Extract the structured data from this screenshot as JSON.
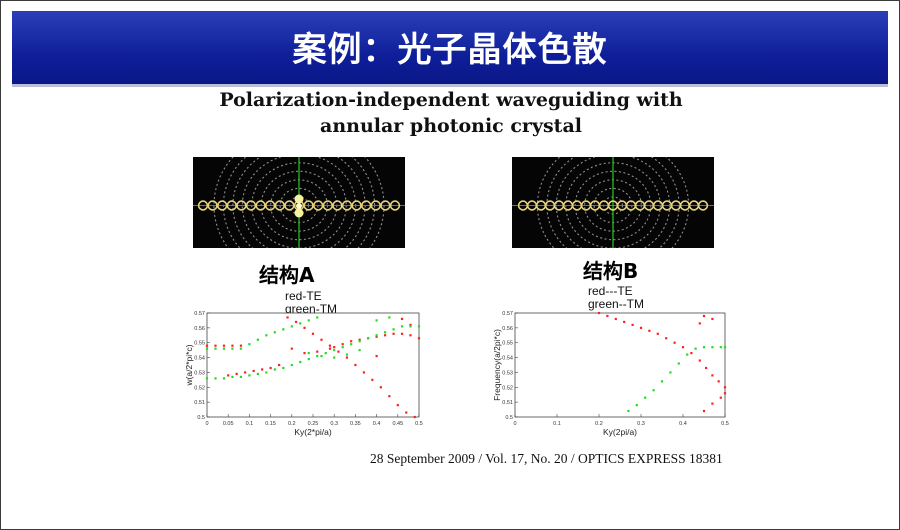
{
  "slide": {
    "title": "案例：光子晶体色散",
    "paper_title_line1": "Polarization-independent waveguiding with",
    "paper_title_line2": "annular photonic crystal",
    "citation": "28 September 2009 / Vol. 17,  No. 20 / OPTICS EXPRESS  18381"
  },
  "structures": [
    {
      "label": "结构A",
      "legend_line1": "red-TE",
      "legend_line2": "green-TM"
    },
    {
      "label": "结构B",
      "legend_line1": "red---TE",
      "legend_line2": "green--TM"
    }
  ],
  "colors": {
    "te": "#ff2020",
    "tm": "#22dd22",
    "title_bar": "#1428a0",
    "crystal_ring": "#bdbdbd",
    "rod": "#e8d27a"
  },
  "chart_data": [
    {
      "type": "scatter",
      "title": "",
      "xlabel": "Ky(2*pi/a)",
      "ylabel": "w(a/2*pi*c)",
      "xlim": [
        0,
        0.5
      ],
      "ylim": [
        0.5,
        0.57
      ],
      "xticks": [
        "0",
        "0.05",
        "0.1",
        "0.15",
        "0.2",
        "0.25",
        "0.3",
        "0.35",
        "0.4",
        "0.45",
        "0.5"
      ],
      "yticks": [
        "0.5",
        "0.51",
        "0.52",
        "0.53",
        "0.54",
        "0.55",
        "0.56",
        "0.57"
      ],
      "series": [
        {
          "name": "red-TE",
          "color": "#ff2020",
          "points": [
            [
              0.0,
              0.548
            ],
            [
              0.02,
              0.548
            ],
            [
              0.04,
              0.548
            ],
            [
              0.06,
              0.548
            ],
            [
              0.08,
              0.548
            ],
            [
              0.05,
              0.528
            ],
            [
              0.07,
              0.529
            ],
            [
              0.09,
              0.53
            ],
            [
              0.11,
              0.531
            ],
            [
              0.13,
              0.532
            ],
            [
              0.15,
              0.533
            ],
            [
              0.17,
              0.535
            ],
            [
              0.19,
              0.567
            ],
            [
              0.21,
              0.564
            ],
            [
              0.23,
              0.56
            ],
            [
              0.25,
              0.556
            ],
            [
              0.27,
              0.552
            ],
            [
              0.29,
              0.548
            ],
            [
              0.31,
              0.544
            ],
            [
              0.33,
              0.54
            ],
            [
              0.35,
              0.535
            ],
            [
              0.37,
              0.53
            ],
            [
              0.39,
              0.525
            ],
            [
              0.41,
              0.52
            ],
            [
              0.43,
              0.514
            ],
            [
              0.45,
              0.508
            ],
            [
              0.47,
              0.503
            ],
            [
              0.49,
              0.5
            ],
            [
              0.2,
              0.546
            ],
            [
              0.23,
              0.543
            ],
            [
              0.26,
              0.544
            ],
            [
              0.29,
              0.546
            ],
            [
              0.3,
              0.547
            ],
            [
              0.32,
              0.549
            ],
            [
              0.34,
              0.551
            ],
            [
              0.36,
              0.552
            ],
            [
              0.38,
              0.553
            ],
            [
              0.4,
              0.554
            ],
            [
              0.42,
              0.555
            ],
            [
              0.44,
              0.556
            ],
            [
              0.46,
              0.556
            ],
            [
              0.48,
              0.555
            ],
            [
              0.5,
              0.553
            ],
            [
              0.4,
              0.541
            ],
            [
              0.46,
              0.566
            ],
            [
              0.48,
              0.562
            ]
          ]
        },
        {
          "name": "green-TM",
          "color": "#22dd22",
          "points": [
            [
              0.0,
              0.546
            ],
            [
              0.02,
              0.546
            ],
            [
              0.04,
              0.546
            ],
            [
              0.06,
              0.546
            ],
            [
              0.08,
              0.546
            ],
            [
              0.1,
              0.549
            ],
            [
              0.12,
              0.552
            ],
            [
              0.14,
              0.555
            ],
            [
              0.16,
              0.557
            ],
            [
              0.18,
              0.559
            ],
            [
              0.2,
              0.561
            ],
            [
              0.22,
              0.563
            ],
            [
              0.24,
              0.565
            ],
            [
              0.26,
              0.567
            ],
            [
              0.0,
              0.526
            ],
            [
              0.02,
              0.526
            ],
            [
              0.04,
              0.526
            ],
            [
              0.06,
              0.527
            ],
            [
              0.08,
              0.527
            ],
            [
              0.1,
              0.528
            ],
            [
              0.12,
              0.529
            ],
            [
              0.14,
              0.53
            ],
            [
              0.16,
              0.532
            ],
            [
              0.18,
              0.533
            ],
            [
              0.2,
              0.535
            ],
            [
              0.22,
              0.537
            ],
            [
              0.24,
              0.539
            ],
            [
              0.26,
              0.541
            ],
            [
              0.28,
              0.543
            ],
            [
              0.3,
              0.545
            ],
            [
              0.32,
              0.547
            ],
            [
              0.34,
              0.549
            ],
            [
              0.36,
              0.551
            ],
            [
              0.38,
              0.553
            ],
            [
              0.4,
              0.555
            ],
            [
              0.42,
              0.557
            ],
            [
              0.44,
              0.559
            ],
            [
              0.46,
              0.561
            ],
            [
              0.48,
              0.561
            ],
            [
              0.5,
              0.561
            ],
            [
              0.24,
              0.543
            ],
            [
              0.27,
              0.541
            ],
            [
              0.3,
              0.54
            ],
            [
              0.33,
              0.542
            ],
            [
              0.36,
              0.545
            ],
            [
              0.4,
              0.565
            ],
            [
              0.43,
              0.567
            ]
          ]
        }
      ]
    },
    {
      "type": "scatter",
      "title": "",
      "xlabel": "Ky(2pi/a)",
      "ylabel": "Frequency(a/2pi*c)",
      "xlim": [
        0,
        0.5
      ],
      "ylim": [
        0.5,
        0.57
      ],
      "xticks": [
        "0",
        "0.1",
        "0.2",
        "0.3",
        "0.4",
        "0.5"
      ],
      "yticks": [
        "0.5",
        "0.51",
        "0.52",
        "0.53",
        "0.54",
        "0.55",
        "0.56",
        "0.57"
      ],
      "series": [
        {
          "name": "red---TE",
          "color": "#ff2020",
          "points": [
            [
              0.2,
              0.57
            ],
            [
              0.22,
              0.568
            ],
            [
              0.24,
              0.566
            ],
            [
              0.26,
              0.564
            ],
            [
              0.28,
              0.562
            ],
            [
              0.3,
              0.56
            ],
            [
              0.32,
              0.558
            ],
            [
              0.34,
              0.556
            ],
            [
              0.36,
              0.553
            ],
            [
              0.38,
              0.55
            ],
            [
              0.4,
              0.547
            ],
            [
              0.42,
              0.543
            ],
            [
              0.44,
              0.538
            ],
            [
              0.455,
              0.533
            ],
            [
              0.47,
              0.528
            ],
            [
              0.485,
              0.524
            ],
            [
              0.5,
              0.52
            ],
            [
              0.45,
              0.504
            ],
            [
              0.47,
              0.509
            ],
            [
              0.49,
              0.513
            ],
            [
              0.5,
              0.516
            ],
            [
              0.45,
              0.568
            ],
            [
              0.47,
              0.566
            ],
            [
              0.44,
              0.563
            ]
          ]
        },
        {
          "name": "green--TM",
          "color": "#22dd22",
          "points": [
            [
              0.27,
              0.504
            ],
            [
              0.29,
              0.508
            ],
            [
              0.31,
              0.513
            ],
            [
              0.33,
              0.518
            ],
            [
              0.35,
              0.524
            ],
            [
              0.37,
              0.53
            ],
            [
              0.39,
              0.536
            ],
            [
              0.41,
              0.542
            ],
            [
              0.43,
              0.546
            ],
            [
              0.45,
              0.547
            ],
            [
              0.47,
              0.547
            ],
            [
              0.49,
              0.547
            ],
            [
              0.5,
              0.547
            ]
          ]
        }
      ]
    }
  ]
}
